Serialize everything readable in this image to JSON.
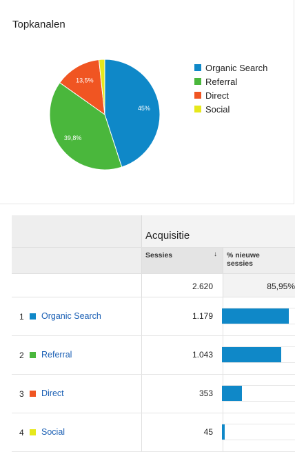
{
  "pie_card": {
    "title": "Topkanalen"
  },
  "chart_data": {
    "type": "pie",
    "slices": [
      {
        "name": "Organic Search",
        "value": 45.0,
        "label": "45%",
        "color": "#0f88c8"
      },
      {
        "name": "Referral",
        "value": 39.8,
        "label": "39,8%",
        "color": "#4ab73c"
      },
      {
        "name": "Direct",
        "value": 13.5,
        "label": "13,5%",
        "color": "#f05522"
      },
      {
        "name": "Social",
        "value": 1.7,
        "label": "",
        "color": "#e6e81c"
      }
    ],
    "legend_position": "right"
  },
  "table": {
    "group_header": "Acquisitie",
    "columns": {
      "sessies": "Sessies",
      "sessies_sort_icon": "sort-down-icon",
      "nieuwe_sessies": "% nieuwe sessies"
    },
    "totals": {
      "sessies": "2.620",
      "nieuwe_sessies": "85,95%"
    },
    "rows": [
      {
        "index": "1",
        "channel": "Organic Search",
        "sessies": "1.179",
        "bar_fraction": 1.0,
        "color": "#0f88c8"
      },
      {
        "index": "2",
        "channel": "Referral",
        "sessies": "1.043",
        "bar_fraction": 0.885,
        "color": "#4ab73c"
      },
      {
        "index": "3",
        "channel": "Direct",
        "sessies": "353",
        "bar_fraction": 0.299,
        "color": "#f05522"
      },
      {
        "index": "4",
        "channel": "Social",
        "sessies": "45",
        "bar_fraction": 0.038,
        "color": "#e6e81c"
      }
    ]
  }
}
